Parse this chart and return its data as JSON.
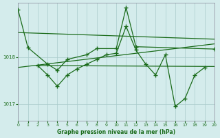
{
  "xlabel": "Graphe pression niveau de la mer (hPa)",
  "bg_color": "#d4ecec",
  "grid_color": "#aacccc",
  "line_color": "#1a6b1a",
  "xlim": [
    0,
    20
  ],
  "ylim": [
    1016.65,
    1019.15
  ],
  "yticks": [
    1017,
    1018
  ],
  "xticks": [
    0,
    1,
    2,
    3,
    4,
    5,
    6,
    7,
    8,
    9,
    10,
    11,
    12,
    13,
    14,
    15,
    16,
    17,
    18,
    19,
    20
  ],
  "series1_x": [
    0,
    1,
    3,
    4,
    5,
    7,
    8,
    10,
    11,
    12,
    20
  ],
  "series1_y": [
    1019.0,
    1018.2,
    1017.85,
    1017.72,
    1017.95,
    1018.05,
    1018.18,
    1018.18,
    1019.05,
    1018.22,
    1018.17
  ],
  "series2_x": [
    2,
    3,
    4,
    5,
    6,
    7,
    8,
    9,
    10,
    11,
    12,
    13,
    14,
    15,
    16,
    17,
    18,
    19
  ],
  "series2_y": [
    1017.82,
    1017.62,
    1017.38,
    1017.62,
    1017.75,
    1017.85,
    1017.95,
    1018.05,
    1018.08,
    1018.65,
    1018.15,
    1017.85,
    1017.62,
    1018.05,
    1016.95,
    1017.12,
    1017.62,
    1017.78
  ],
  "trend1_x": [
    0,
    20
  ],
  "trend1_y": [
    1018.52,
    1018.38
  ],
  "trend2_x": [
    0,
    20
  ],
  "trend2_y": [
    1017.78,
    1018.28
  ],
  "trend3_x": [
    2,
    20
  ],
  "trend3_y": [
    1017.82,
    1017.8
  ]
}
